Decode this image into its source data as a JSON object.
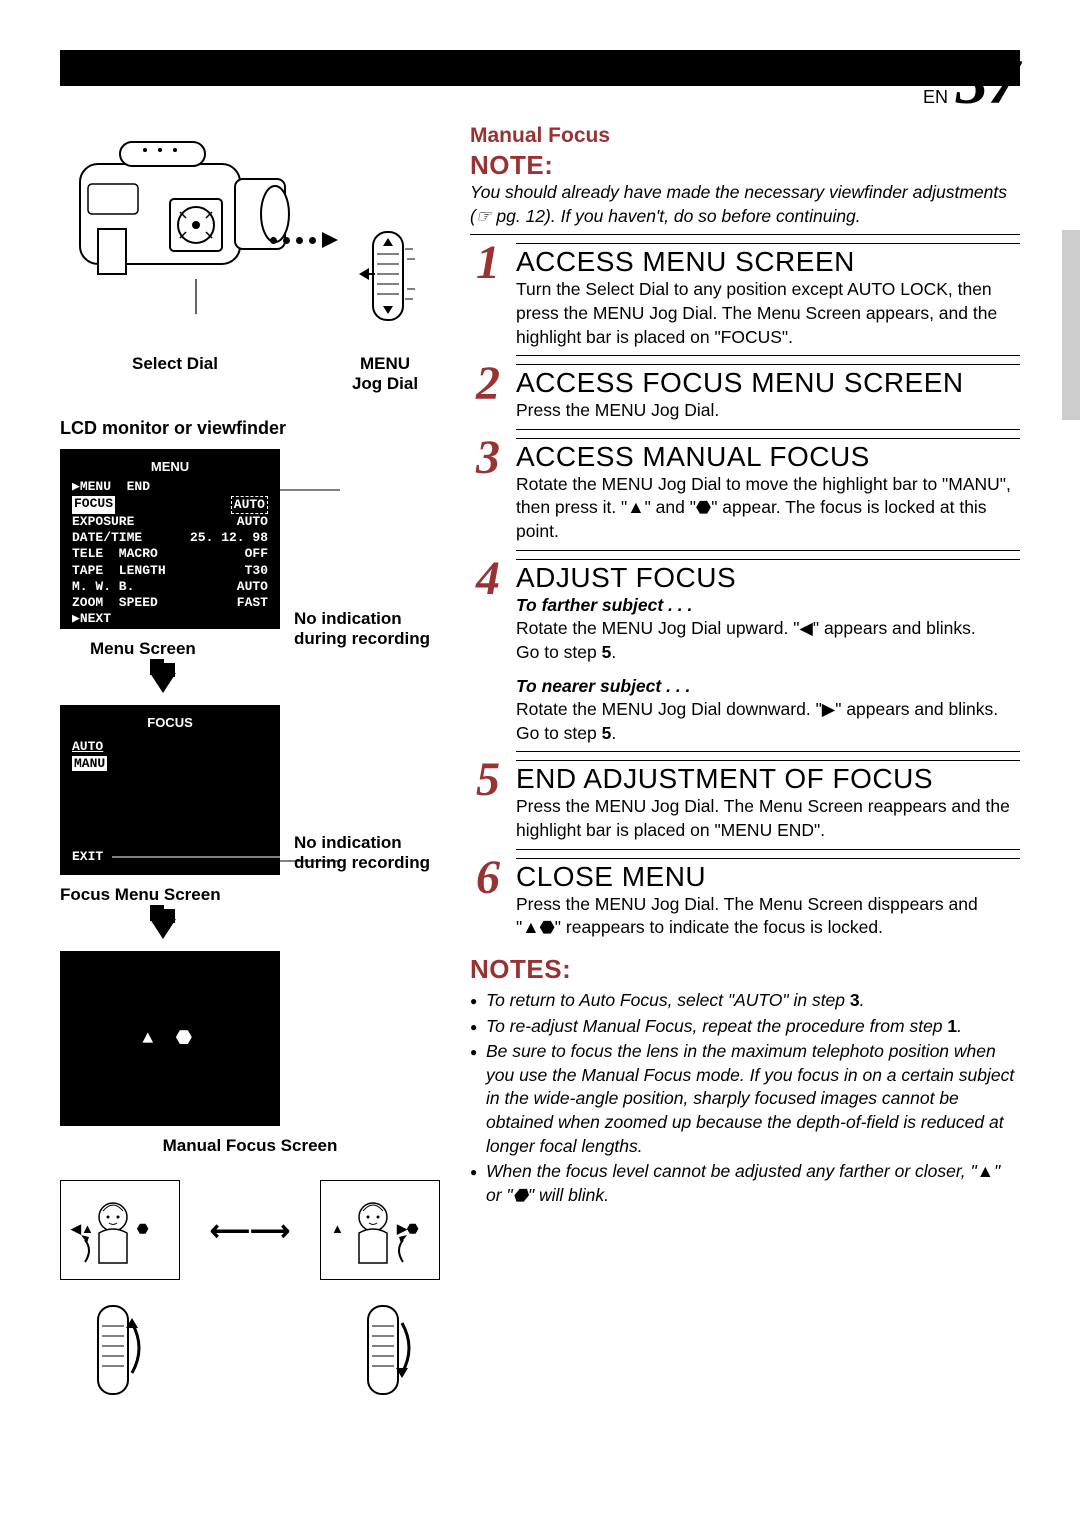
{
  "page": {
    "lang": "EN",
    "number": "37"
  },
  "header": {
    "section_title": "Manual Focus"
  },
  "camcorder": {
    "select_dial_label": "Select Dial",
    "menu_jog_label_l1": "MENU",
    "menu_jog_label_l2": "Jog Dial"
  },
  "lcd_title": "LCD monitor or viewfinder",
  "menu_screen": {
    "header": "MENU",
    "items": [
      {
        "label": "▶MENU  END",
        "value": ""
      },
      {
        "label": "FOCUS",
        "value": "AUTO",
        "hl_label": true,
        "dash_value": true
      },
      {
        "label": "EXPOSURE",
        "value": "AUTO"
      },
      {
        "label": "DATE/TIME",
        "value": "25. 12. 98"
      },
      {
        "label": "TELE  MACRO",
        "value": "OFF"
      },
      {
        "label": "TAPE  LENGTH",
        "value": "T30"
      },
      {
        "label": "M. W. B.",
        "value": "AUTO"
      },
      {
        "label": "ZOOM  SPEED",
        "value": "FAST"
      },
      {
        "label": "▶NEXT",
        "value": ""
      }
    ],
    "caption": "Menu Screen",
    "side_note": "No indication during recording"
  },
  "focus_screen": {
    "header": "FOCUS",
    "auto": "AUTO",
    "manu": "MANU",
    "exit": "EXIT",
    "caption": "Focus Menu Screen",
    "side_note": "No indication during recording"
  },
  "manual_focus_screen": {
    "icons": "▲  ⬣",
    "caption": "Manual Focus Screen"
  },
  "note": {
    "label": "NOTE:",
    "body": "You should already have made the necessary viewfinder adjustments (☞ pg. 12). If you haven't, do so before continuing."
  },
  "steps": [
    {
      "num": "1",
      "title": "ACCESS MENU SCREEN",
      "body": "Turn the Select Dial to any position except AUTO LOCK, then press the MENU Jog Dial. The Menu Screen appears, and the highlight bar is placed on \"FOCUS\"."
    },
    {
      "num": "2",
      "title": "ACCESS FOCUS MENU SCREEN",
      "body": "Press the MENU Jog Dial."
    },
    {
      "num": "3",
      "title": "ACCESS MANUAL FOCUS",
      "body": "Rotate the MENU Jog Dial to move the highlight bar to \"MANU\", then press it. \"▲\" and \"⬣\" appear. The focus is locked at this point."
    },
    {
      "num": "4",
      "title": "ADJUST FOCUS",
      "sub1_h": "To farther subject . . .",
      "sub1_b": "Rotate the MENU Jog Dial upward. \"◀\" appears and blinks.",
      "sub1_g": "Go to step 5.",
      "sub2_h": "To nearer subject . . .",
      "sub2_b": "Rotate the MENU Jog Dial downward. \"▶\" appears and blinks.",
      "sub2_g": "Go to step 5."
    },
    {
      "num": "5",
      "title": "END ADJUSTMENT OF FOCUS",
      "body": "Press the MENU Jog Dial. The Menu Screen reappears and the highlight bar is placed on \"MENU END\"."
    },
    {
      "num": "6",
      "title": "CLOSE MENU",
      "body": "Press the MENU Jog Dial. The Menu Screen disppears and \"▲⬣\" reappears to indicate the focus is locked."
    }
  ],
  "notes_section": {
    "label": "NOTES:",
    "items": [
      "To return to Auto Focus, select \"AUTO\" in step 3.",
      "To re-adjust Manual Focus, repeat the procedure from step 1.",
      "Be sure to focus the lens in the maximum telephoto position when you use the Manual Focus mode. If you focus in on a certain subject in the wide-angle position, sharply focused images cannot be obtained when zoomed up because the depth-of-field is reduced at longer focal lengths.",
      "When the focus level cannot be adjusted any farther or closer, \"▲\" or \"⬣\" will blink."
    ]
  },
  "colors": {
    "accent": "#933333",
    "black": "#000000",
    "white": "#ffffff",
    "grey_tab": "#cccccc"
  }
}
